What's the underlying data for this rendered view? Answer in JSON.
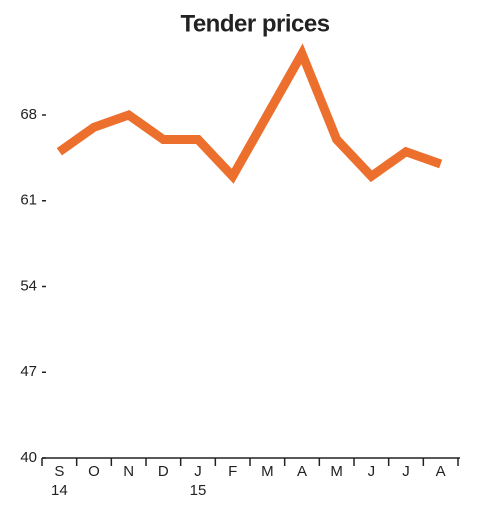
{
  "chart_data": {
    "type": "line",
    "title": "Tender prices",
    "categories": [
      "S",
      "O",
      "N",
      "D",
      "J",
      "F",
      "M",
      "A",
      "M",
      "J",
      "J",
      "A"
    ],
    "category_years": [
      "14",
      null,
      null,
      null,
      "15",
      null,
      null,
      null,
      null,
      null,
      null,
      null
    ],
    "series": [
      {
        "name": "Tender prices",
        "color": "#ec6f2d",
        "values": [
          65,
          67,
          68,
          66,
          66,
          63,
          68,
          73,
          66,
          63,
          65,
          64
        ]
      }
    ],
    "ylim": [
      40,
      75
    ],
    "yticks": [
      40,
      47,
      54,
      61,
      68
    ]
  }
}
